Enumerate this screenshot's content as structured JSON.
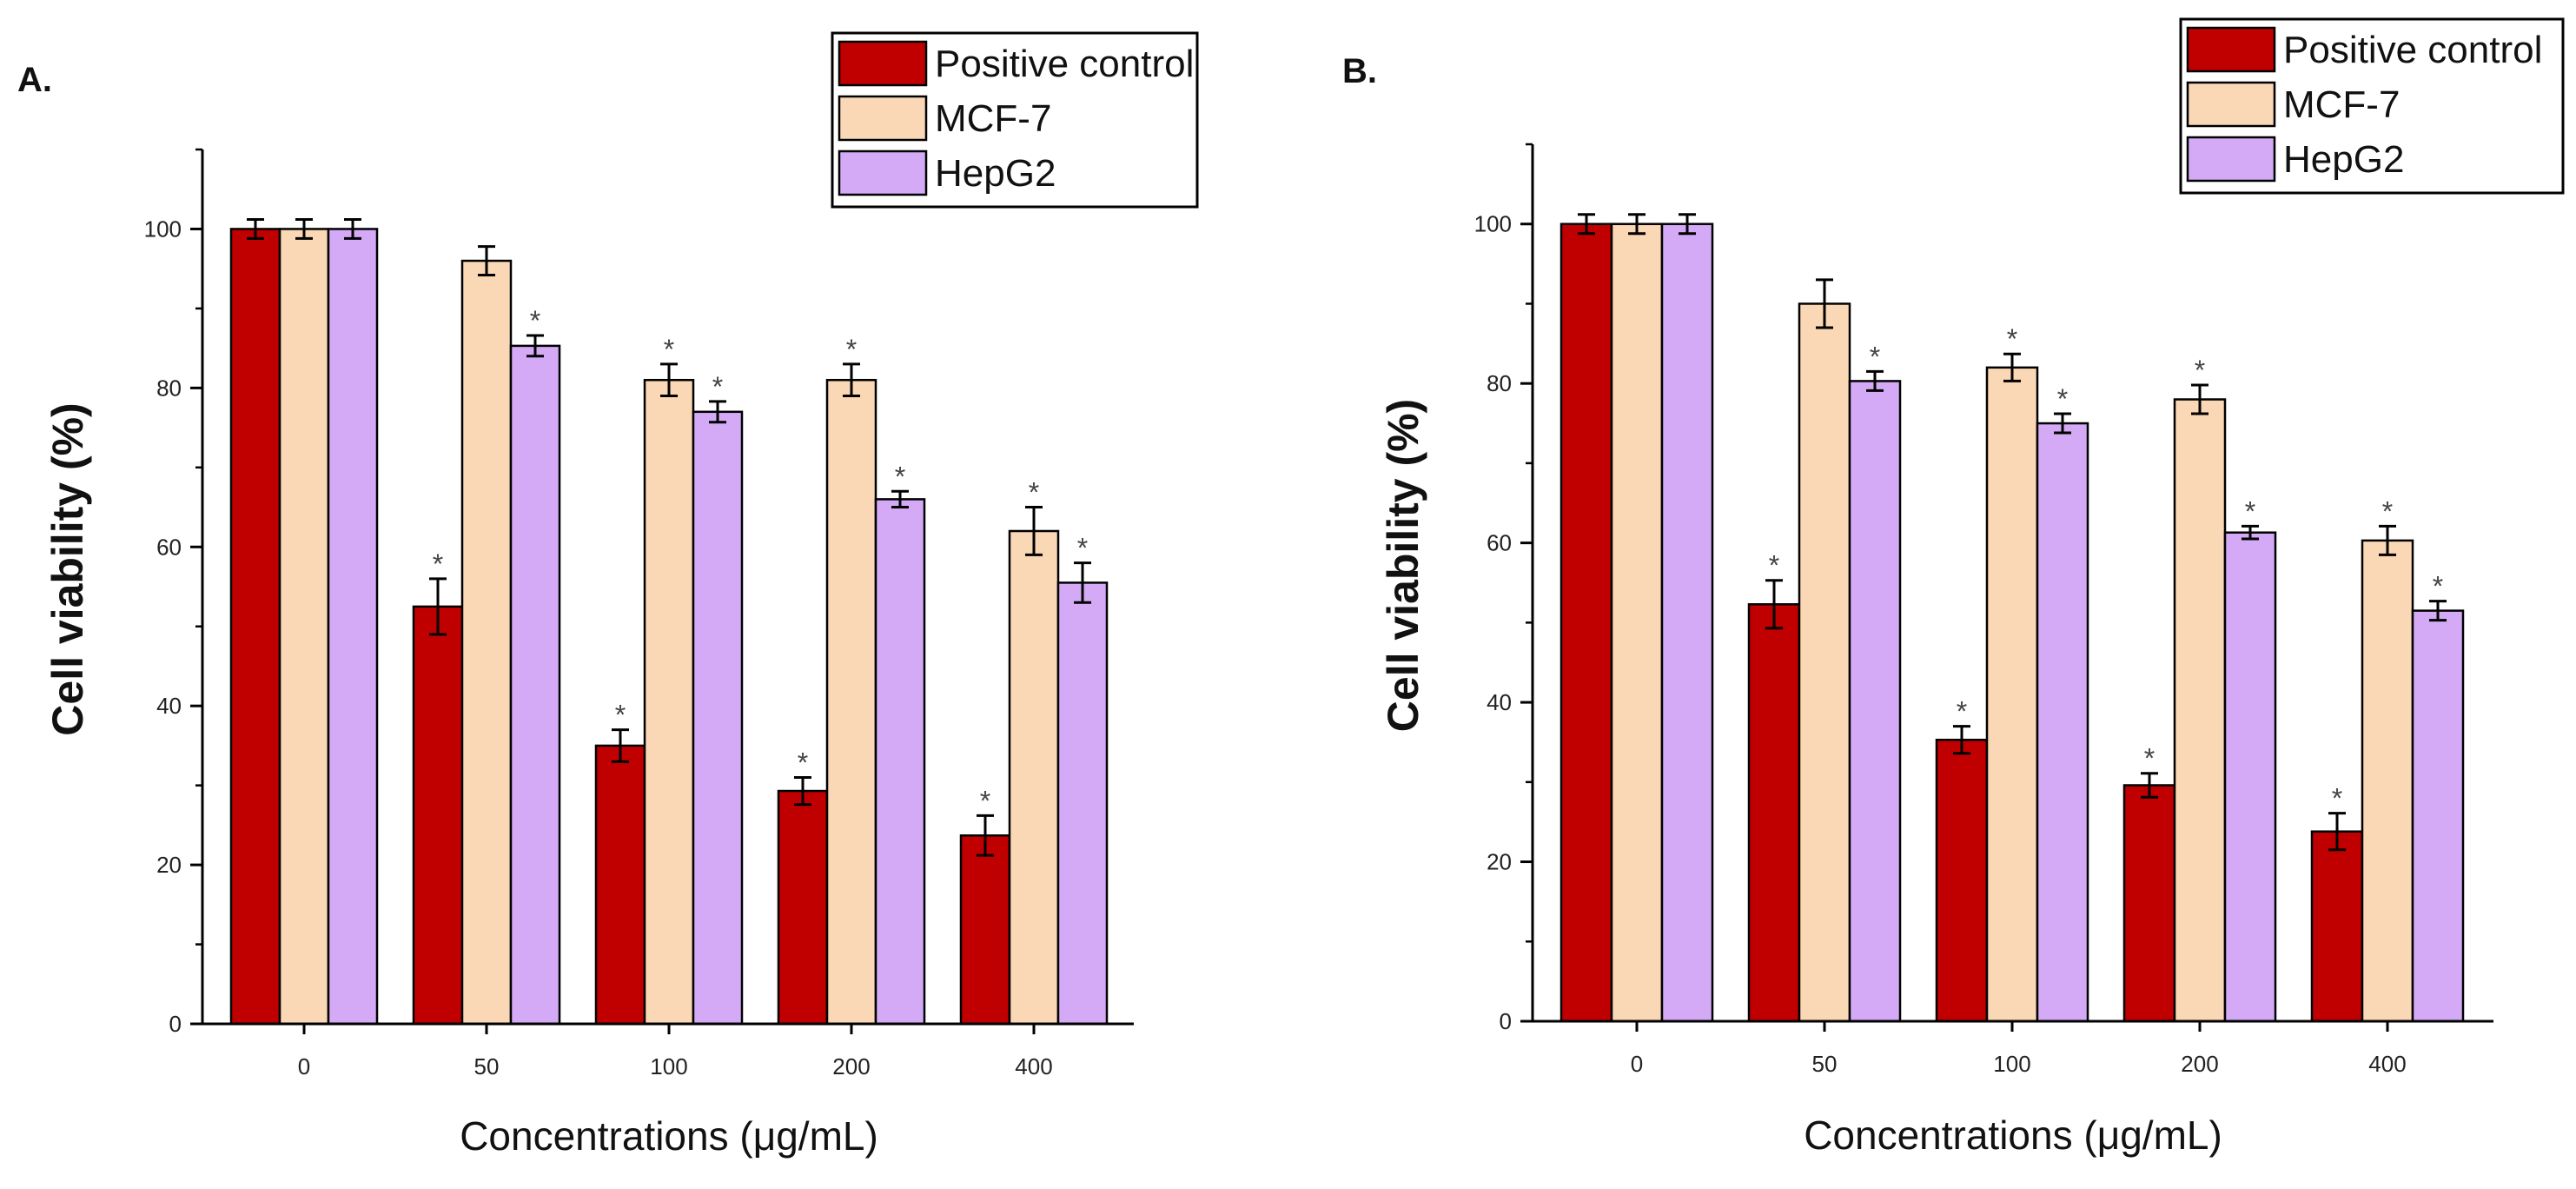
{
  "chart_data": [
    {
      "type": "bar",
      "panel_label": "A.",
      "title": "",
      "xlabel": "Concentrations (μg/mL)",
      "ylabel": "Cell viability (%)",
      "ylim": [
        0,
        110
      ],
      "y_ticks": [
        "0",
        "20",
        "40",
        "60",
        "80",
        "100"
      ],
      "categories": [
        "0",
        "50",
        "100",
        "200",
        "400"
      ],
      "legend_position": "top-right",
      "series": [
        {
          "name": "Positive control",
          "color": "#c00000",
          "values": [
            100,
            52.5,
            35,
            29.3,
            23.7
          ],
          "errors": [
            1.2,
            3.5,
            2,
            1.7,
            2.5
          ],
          "significance": [
            "",
            "*",
            "*",
            "*",
            "*"
          ]
        },
        {
          "name": "MCF-7",
          "color": "#fad7b5",
          "values": [
            100,
            96,
            81,
            81,
            62
          ],
          "errors": [
            1.2,
            1.8,
            2,
            2,
            3
          ],
          "significance": [
            "",
            "",
            "*",
            "*",
            "*"
          ]
        },
        {
          "name": "HepG2",
          "color": "#d4aaf7",
          "values": [
            100,
            85.3,
            77,
            66,
            55.5
          ],
          "errors": [
            1.2,
            1.3,
            1.3,
            1,
            2.5
          ],
          "significance": [
            "",
            "*",
            "*",
            "*",
            "*"
          ]
        }
      ]
    },
    {
      "type": "bar",
      "panel_label": "B.",
      "title": "",
      "xlabel": "Concentrations (μg/mL)",
      "ylabel": "Cell viability (%)",
      "ylim": [
        0,
        110
      ],
      "y_ticks": [
        "0",
        "20",
        "40",
        "60",
        "80",
        "100"
      ],
      "categories": [
        "0",
        "50",
        "100",
        "200",
        "400"
      ],
      "legend_position": "top-right",
      "series": [
        {
          "name": "Positive control",
          "color": "#c00000",
          "values": [
            100,
            52.3,
            35.3,
            29.6,
            23.8
          ],
          "errors": [
            1.2,
            3,
            1.7,
            1.5,
            2.3
          ],
          "significance": [
            "",
            "*",
            "*",
            "*",
            "*"
          ]
        },
        {
          "name": "MCF-7",
          "color": "#fad7b5",
          "values": [
            100,
            90,
            82,
            78,
            60.3
          ],
          "errors": [
            1.2,
            3,
            1.7,
            1.8,
            1.8
          ],
          "significance": [
            "",
            "",
            "*",
            "*",
            "*"
          ]
        },
        {
          "name": "HepG2",
          "color": "#d4aaf7",
          "values": [
            100,
            80.3,
            75,
            61.3,
            51.5
          ],
          "errors": [
            1.2,
            1.2,
            1.2,
            0.8,
            1.2
          ],
          "significance": [
            "",
            "*",
            "*",
            "*",
            "*"
          ]
        }
      ]
    }
  ]
}
